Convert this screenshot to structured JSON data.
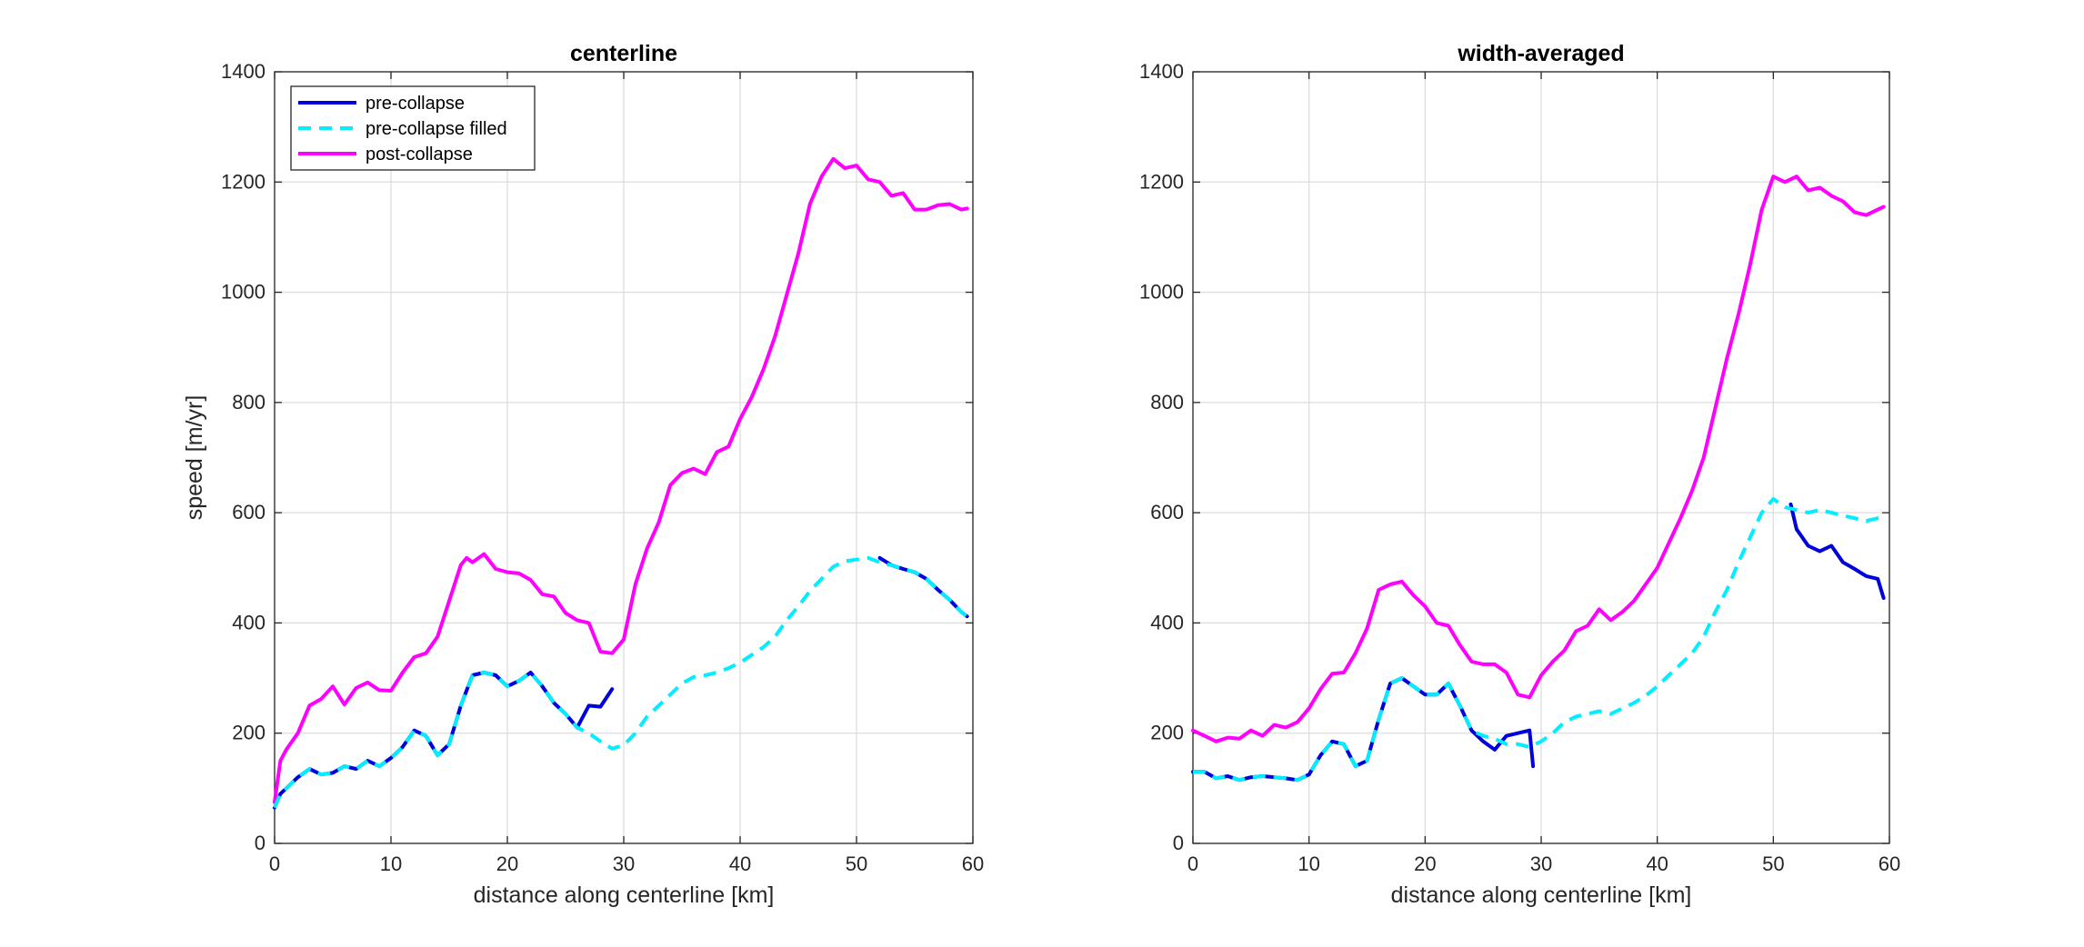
{
  "chart_data": [
    {
      "type": "line",
      "title": "centerline",
      "xlabel": "distance along centerline [km]",
      "ylabel": "speed [m/yr]",
      "xlim": [
        0,
        60
      ],
      "ylim": [
        0,
        1400
      ],
      "xticks": [
        "0",
        "10",
        "20",
        "30",
        "40",
        "50",
        "60"
      ],
      "yticks": [
        "0",
        "200",
        "400",
        "600",
        "800",
        "1000",
        "1200",
        "1400"
      ],
      "grid": true,
      "legend": "top-left",
      "series": [
        {
          "name": "post-collapse",
          "color": "#ff00ff",
          "style": "solid",
          "x": [
            0,
            0.5,
            1,
            2,
            3,
            4,
            5,
            6,
            7,
            8,
            9,
            10,
            11,
            12,
            13,
            14,
            15,
            16,
            16.5,
            17,
            18,
            19,
            20,
            21,
            22,
            23,
            24,
            25,
            26,
            27,
            28,
            29,
            30,
            31,
            32,
            33,
            34,
            35,
            36,
            37,
            38,
            39,
            40,
            41,
            42,
            43,
            44,
            45,
            46,
            47,
            48,
            49,
            50,
            51,
            52,
            53,
            54,
            55,
            56,
            57,
            58,
            59,
            59.5
          ],
          "y": [
            75,
            150,
            170,
            200,
            250,
            262,
            285,
            252,
            282,
            292,
            278,
            277,
            310,
            338,
            345,
            375,
            440,
            505,
            518,
            510,
            525,
            498,
            492,
            490,
            478,
            452,
            448,
            418,
            405,
            400,
            348,
            345,
            370,
            470,
            535,
            582,
            650,
            672,
            680,
            670,
            710,
            720,
            770,
            810,
            860,
            920,
            995,
            1070,
            1160,
            1210,
            1242,
            1225,
            1230,
            1205,
            1200,
            1175,
            1180,
            1150,
            1150,
            1158,
            1160,
            1150,
            1152
          ]
        },
        {
          "name": "pre-collapse",
          "color": "#0000dd",
          "style": "solid",
          "segments": [
            {
              "x": [
                0,
                0.5,
                1,
                2,
                3,
                4,
                5,
                6,
                7,
                8,
                9,
                10,
                11,
                12,
                13,
                14,
                15,
                16,
                17,
                18,
                19,
                20,
                21,
                22,
                23,
                24,
                25,
                26,
                27,
                28,
                29
              ],
              "y": [
                65,
                90,
                100,
                120,
                135,
                125,
                128,
                140,
                135,
                150,
                140,
                155,
                175,
                205,
                195,
                160,
                180,
                250,
                305,
                310,
                305,
                285,
                295,
                310,
                285,
                255,
                235,
                210,
                250,
                248,
                280
              ]
            },
            {
              "x": [
                52,
                53,
                54,
                55,
                56,
                57,
                58,
                59,
                59.5
              ],
              "y": [
                518,
                505,
                498,
                492,
                480,
                460,
                442,
                420,
                412
              ]
            }
          ]
        },
        {
          "name": "pre-collapse filled",
          "color": "#00eeff",
          "style": "dashed",
          "x": [
            0,
            0.5,
            1,
            2,
            3,
            4,
            5,
            6,
            7,
            8,
            9,
            10,
            11,
            12,
            13,
            14,
            15,
            16,
            17,
            18,
            19,
            20,
            21,
            22,
            23,
            24,
            25,
            26,
            27,
            28,
            29,
            30,
            31,
            32,
            33,
            34,
            35,
            36,
            37,
            38,
            39,
            40,
            41,
            42,
            43,
            44,
            45,
            46,
            47,
            48,
            49,
            50,
            51,
            52,
            53,
            54,
            55,
            56,
            57,
            58,
            59,
            59.5
          ],
          "y": [
            65,
            90,
            100,
            120,
            135,
            125,
            128,
            140,
            135,
            150,
            140,
            155,
            175,
            205,
            195,
            160,
            180,
            250,
            305,
            310,
            305,
            285,
            295,
            310,
            285,
            255,
            235,
            210,
            200,
            185,
            172,
            178,
            200,
            230,
            250,
            270,
            290,
            302,
            305,
            310,
            318,
            328,
            342,
            356,
            375,
            405,
            430,
            458,
            480,
            502,
            512,
            515,
            518,
            510,
            505,
            498,
            492,
            480,
            460,
            442,
            420,
            412
          ]
        }
      ]
    },
    {
      "type": "line",
      "title": "width-averaged",
      "xlabel": "distance along centerline [km]",
      "ylabel": "",
      "xlim": [
        0,
        60
      ],
      "ylim": [
        0,
        1400
      ],
      "xticks": [
        "0",
        "10",
        "20",
        "30",
        "40",
        "50",
        "60"
      ],
      "yticks": [
        "0",
        "200",
        "400",
        "600",
        "800",
        "1000",
        "1200",
        "1400"
      ],
      "grid": true,
      "series": [
        {
          "name": "post-collapse",
          "color": "#ff00ff",
          "style": "solid",
          "x": [
            0,
            1,
            2,
            3,
            4,
            5,
            6,
            7,
            8,
            9,
            10,
            11,
            12,
            13,
            14,
            15,
            16,
            17,
            18,
            19,
            20,
            21,
            22,
            23,
            24,
            25,
            26,
            27,
            28,
            29,
            30,
            31,
            32,
            33,
            34,
            35,
            36,
            37,
            38,
            39,
            40,
            41,
            42,
            43,
            44,
            45,
            46,
            47,
            48,
            49,
            50,
            51,
            52,
            53,
            54,
            55,
            56,
            57,
            58,
            59,
            59.5
          ],
          "y": [
            205,
            195,
            185,
            192,
            190,
            205,
            195,
            215,
            210,
            220,
            245,
            280,
            308,
            310,
            345,
            390,
            460,
            470,
            475,
            450,
            430,
            400,
            395,
            360,
            330,
            325,
            325,
            310,
            270,
            265,
            305,
            330,
            350,
            385,
            395,
            425,
            405,
            420,
            440,
            470,
            500,
            545,
            590,
            640,
            700,
            790,
            880,
            960,
            1050,
            1150,
            1210,
            1200,
            1210,
            1185,
            1190,
            1175,
            1165,
            1145,
            1140,
            1150,
            1155
          ]
        },
        {
          "name": "pre-collapse",
          "color": "#0000dd",
          "style": "solid",
          "segments": [
            {
              "x": [
                0,
                1,
                2,
                3,
                4,
                5,
                6,
                7,
                8,
                9,
                10,
                11,
                12,
                13,
                14,
                15,
                16,
                17,
                18,
                19,
                20,
                21,
                22,
                23,
                24,
                25,
                26,
                27,
                28,
                29,
                29.3
              ],
              "y": [
                130,
                130,
                118,
                122,
                115,
                120,
                122,
                120,
                118,
                115,
                125,
                160,
                185,
                180,
                140,
                150,
                225,
                290,
                300,
                285,
                270,
                270,
                290,
                250,
                205,
                185,
                170,
                195,
                200,
                205,
                140
              ]
            },
            {
              "x": [
                51.5,
                52,
                53,
                54,
                55,
                56,
                57,
                58,
                59,
                59.5
              ],
              "y": [
                615,
                570,
                540,
                530,
                540,
                510,
                498,
                485,
                480,
                445
              ]
            }
          ]
        },
        {
          "name": "pre-collapse filled",
          "color": "#00eeff",
          "style": "dashed",
          "x": [
            0,
            1,
            2,
            3,
            4,
            5,
            6,
            7,
            8,
            9,
            10,
            11,
            12,
            13,
            14,
            15,
            16,
            17,
            18,
            19,
            20,
            21,
            22,
            23,
            24,
            25,
            26,
            27,
            28,
            29,
            30,
            31,
            32,
            33,
            34,
            35,
            36,
            37,
            38,
            39,
            40,
            41,
            42,
            43,
            44,
            45,
            46,
            47,
            48,
            49,
            50,
            51,
            52,
            53,
            54,
            55,
            56,
            57,
            58,
            59,
            59.5
          ],
          "y": [
            130,
            130,
            118,
            122,
            115,
            120,
            122,
            120,
            118,
            115,
            125,
            160,
            185,
            180,
            140,
            150,
            225,
            290,
            300,
            285,
            270,
            270,
            290,
            250,
            205,
            195,
            190,
            180,
            180,
            175,
            185,
            200,
            220,
            230,
            235,
            240,
            235,
            245,
            255,
            268,
            285,
            305,
            325,
            345,
            375,
            420,
            460,
            510,
            555,
            600,
            625,
            610,
            605,
            600,
            605,
            600,
            595,
            590,
            585,
            590,
            592
          ]
        }
      ]
    }
  ]
}
